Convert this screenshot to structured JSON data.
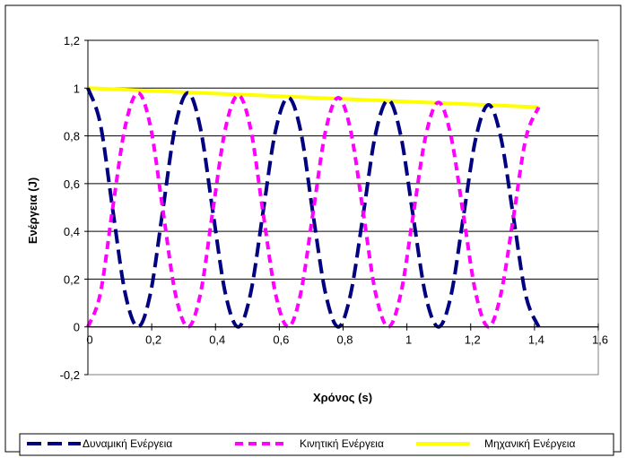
{
  "chart_data": {
    "type": "line",
    "xlabel": "Χρόνος (s)",
    "ylabel": "Ενέργεια (J)",
    "xlim": [
      0,
      1.6
    ],
    "ylim": [
      -0.2,
      1.2
    ],
    "x_ticks": [
      0,
      0.2,
      0.4,
      0.6,
      0.8,
      1,
      1.2,
      1.4,
      1.6
    ],
    "x_tick_labels": [
      "0",
      "0,2",
      "0,4",
      "0,6",
      "0,8",
      "1",
      "1,2",
      "1,4",
      "1,6"
    ],
    "y_ticks": [
      -0.2,
      0,
      0.2,
      0.4,
      0.6,
      0.8,
      1,
      1.2
    ],
    "y_tick_labels": [
      "-0,2",
      "0",
      "0,2",
      "0,4",
      "0,6",
      "0,8",
      "1",
      "1,2"
    ],
    "grid": "horizontal major lines",
    "legend_position": "bottom",
    "series": [
      {
        "name": "Δυναμική Ενέργεια",
        "color": "#000080",
        "dash": "long-dash",
        "x": [
          0,
          0.039,
          0.078,
          0.117,
          0.157,
          0.196,
          0.235,
          0.274,
          0.314,
          0.353,
          0.392,
          0.431,
          0.471,
          0.51,
          0.549,
          0.588,
          0.628,
          0.667,
          0.706,
          0.745,
          0.785,
          0.824,
          0.863,
          0.902,
          0.942,
          0.981,
          1.02,
          1.059,
          1.099,
          1.138,
          1.177,
          1.216,
          1.256,
          1.295,
          1.334,
          1.373,
          1.413
        ],
        "y": [
          1.0,
          0.85,
          0.49,
          0.14,
          0.0,
          0.14,
          0.49,
          0.84,
          0.98,
          0.83,
          0.48,
          0.14,
          0.0,
          0.14,
          0.48,
          0.82,
          0.96,
          0.82,
          0.47,
          0.14,
          0.0,
          0.14,
          0.47,
          0.81,
          0.95,
          0.8,
          0.46,
          0.13,
          0.0,
          0.13,
          0.46,
          0.79,
          0.93,
          0.79,
          0.46,
          0.13,
          0.0
        ]
      },
      {
        "name": "Κινητική Ενέργεια",
        "color": "#ff00ff",
        "dash": "short-dash",
        "x": [
          0,
          0.039,
          0.078,
          0.117,
          0.157,
          0.196,
          0.235,
          0.274,
          0.314,
          0.353,
          0.392,
          0.431,
          0.471,
          0.51,
          0.549,
          0.588,
          0.628,
          0.667,
          0.706,
          0.745,
          0.785,
          0.824,
          0.863,
          0.902,
          0.942,
          0.981,
          1.02,
          1.059,
          1.099,
          1.138,
          1.177,
          1.216,
          1.256,
          1.295,
          1.334,
          1.373,
          1.413
        ],
        "y": [
          0.0,
          0.14,
          0.5,
          0.84,
          0.98,
          0.84,
          0.49,
          0.14,
          0.0,
          0.14,
          0.49,
          0.83,
          0.97,
          0.83,
          0.48,
          0.14,
          0.0,
          0.14,
          0.48,
          0.82,
          0.96,
          0.82,
          0.48,
          0.14,
          0.0,
          0.14,
          0.47,
          0.8,
          0.94,
          0.8,
          0.47,
          0.14,
          0.0,
          0.14,
          0.46,
          0.79,
          0.92
        ]
      },
      {
        "name": "Μηχανική Ενέργεια",
        "color": "#ffff00",
        "dash": "solid",
        "x": [
          0,
          1.413
        ],
        "y": [
          1.0,
          0.92
        ]
      }
    ]
  }
}
